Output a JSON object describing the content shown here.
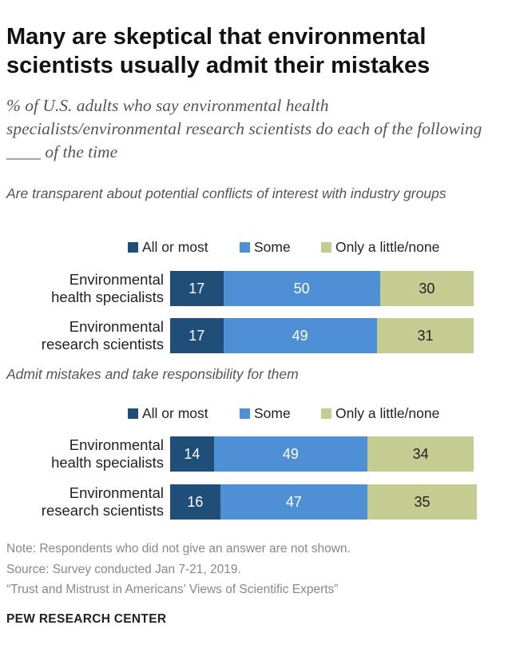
{
  "title_line1": "Many are skeptical that environmental",
  "title_line2": "scientists usually admit their mistakes",
  "subtitle": "% of U.S. adults who say environmental health specialists/environmental research scientists do each of the following ____ of the time",
  "chart_data": {
    "type": "bar",
    "orientation": "horizontal-stacked",
    "xlim": [
      0,
      100
    ],
    "legend": [
      "All or most",
      "Some",
      "Only a little/none"
    ],
    "colors": [
      "#1f4e79",
      "#4f8fd6",
      "#c5cc91"
    ],
    "value_colors": [
      "#ffffff",
      "#ffffff",
      "#222222"
    ],
    "panels": [
      {
        "title": "Are transparent about potential conflicts of interest with industry groups",
        "rows": [
          {
            "label_line1": "Environmental",
            "label_line2": "health specialists",
            "values": [
              17,
              50,
              30
            ]
          },
          {
            "label_line1": "Environmental",
            "label_line2": "research scientists",
            "values": [
              17,
              49,
              31
            ]
          }
        ]
      },
      {
        "title": "Admit mistakes and take responsibility for them",
        "rows": [
          {
            "label_line1": "Environmental",
            "label_line2": "health specialists",
            "values": [
              14,
              49,
              34
            ]
          },
          {
            "label_line1": "Environmental",
            "label_line2": "research scientists",
            "values": [
              16,
              47,
              35
            ]
          }
        ]
      }
    ]
  },
  "note": "Note: Respondents who did not give an answer are not shown.",
  "source": "Source: Survey conducted Jan 7-21, 2019.",
  "report": "“Trust and Mistrust in Americans’ Views of Scientific Experts”",
  "brand": "PEW RESEARCH CENTER"
}
